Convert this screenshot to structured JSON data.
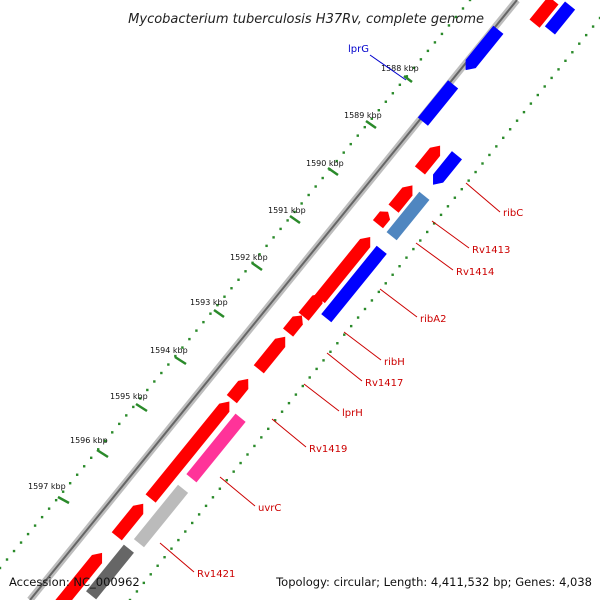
{
  "map": {
    "title": "Mycobacterium tuberculosis H37Rv, complete genome",
    "accession": "Accession: NC_000962",
    "topology": "Topology: circular; Length: 4,411,532 bp; Genes: 4,038"
  },
  "ticks": [
    {
      "label": "1588 kbp"
    },
    {
      "label": "1589 kbp"
    },
    {
      "label": "1590 kbp"
    },
    {
      "label": "1591 kbp"
    },
    {
      "label": "1592 kbp"
    },
    {
      "label": "1593 kbp"
    },
    {
      "label": "1594 kbp"
    },
    {
      "label": "1595 kbp"
    },
    {
      "label": "1596 kbp"
    },
    {
      "label": "1597 kbp"
    }
  ],
  "genes": [
    {
      "name": "lprG",
      "color": "#0000cc"
    },
    {
      "name": "ribC",
      "color": "#cc0000"
    },
    {
      "name": "Rv1413",
      "color": "#cc0000"
    },
    {
      "name": "Rv1414",
      "color": "#cc0000"
    },
    {
      "name": "ribA2",
      "color": "#cc0000"
    },
    {
      "name": "ribH",
      "color": "#cc0000"
    },
    {
      "name": "Rv1417",
      "color": "#cc0000"
    },
    {
      "name": "lprH",
      "color": "#cc0000"
    },
    {
      "name": "Rv1419",
      "color": "#cc0000"
    },
    {
      "name": "uvrC",
      "color": "#cc0000"
    },
    {
      "name": "Rv1421",
      "color": "#cc0000"
    }
  ],
  "colors": {
    "forward_strand": "#ff0000",
    "reverse_strand": "#0000ff",
    "highlight": "#ff3399",
    "light_grey": "#bbbbbb",
    "dark_grey": "#666666",
    "steel_blue": "#4f86c0",
    "backbone": "#888888",
    "dots": "#2a8a2a"
  }
}
